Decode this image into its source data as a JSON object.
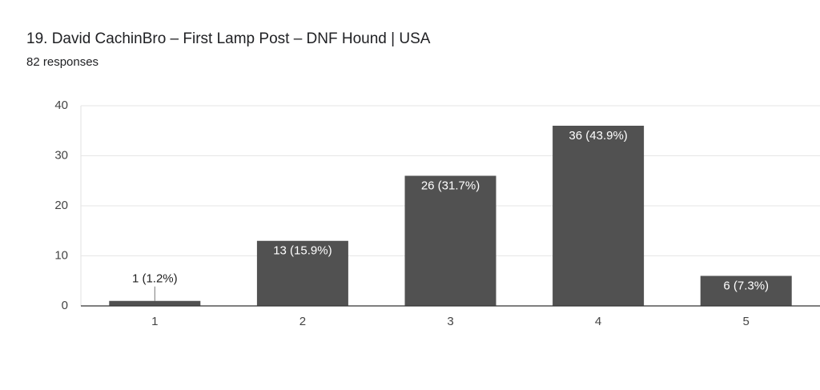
{
  "chart_data": {
    "type": "bar",
    "title": "19. David CachinBro – First Lamp Post – DNF Hound | USA",
    "subtitle": "82 responses",
    "categories": [
      "1",
      "2",
      "3",
      "4",
      "5"
    ],
    "values": [
      1,
      13,
      26,
      36,
      6
    ],
    "value_labels": [
      "1 (1.2%)",
      "13 (15.9%)",
      "26 (31.7%)",
      "36 (43.9%)",
      "6 (7.3%)"
    ],
    "color": "#515151",
    "ylim": [
      0,
      40
    ],
    "yticks": [
      0,
      10,
      20,
      30,
      40
    ],
    "grid": true
  }
}
